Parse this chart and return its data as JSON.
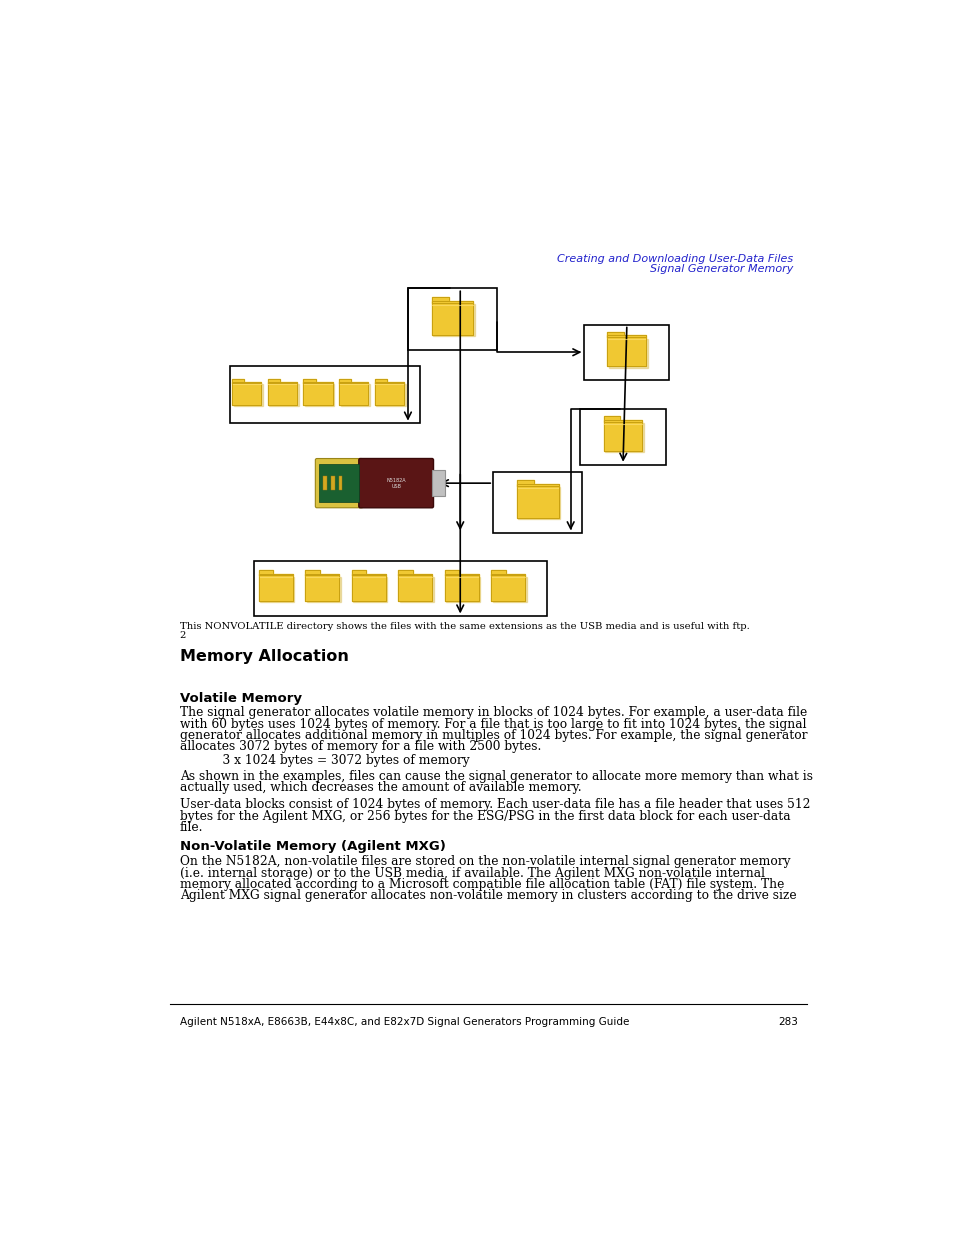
{
  "page_bg": "#ffffff",
  "header_text_line1": "Creating and Downloading User-Data Files",
  "header_text_line2": "Signal Generator Memory",
  "header_color": "#2222cc",
  "header_fontsize": 8.0,
  "section_title": "Memory Allocation",
  "section_title_fontsize": 11.5,
  "subsection1_title": "Volatile Memory",
  "subsection1_fontsize": 9.5,
  "subsection2_title": "Non-Volatile Memory (Agilent MXG)",
  "subsection2_fontsize": 9.5,
  "body_fontsize": 8.8,
  "body_color": "#000000",
  "para1_lines": [
    "The signal generator allocates volatile memory in blocks of 1024 bytes. For example, a user-data file",
    "with 60 bytes uses 1024 bytes of memory. For a file that is too large to fit into 1024 bytes, the signal",
    "generator allocates additional memory in multiples of 1024 bytes. For example, the signal generator",
    "allocates 3072 bytes of memory for a file with 2500 bytes."
  ],
  "formula": "    3 x 1024 bytes = 3072 bytes of memory",
  "para2_lines": [
    "As shown in the examples, files can cause the signal generator to allocate more memory than what is",
    "actually used, which decreases the amount of available memory."
  ],
  "para3_lines": [
    "User-data blocks consist of 1024 bytes of memory. Each user-data file has a file header that uses 512",
    "bytes for the Agilent MXG, or 256 bytes for the ESG/PSG in the first data block for each user-data",
    "file."
  ],
  "para4_lines": [
    "On the N5182A, non-volatile files are stored on the non-volatile internal signal generator memory",
    "(i.e. internal storage) or to the USB media, if available. The Agilent MXG non-volatile internal",
    "memory allocated according to a Microsoft compatible file allocation table (FAT) file system. The",
    "Agilent MXG signal generator allocates non-volatile memory in clusters according to the drive size"
  ],
  "footnote_line1": "This NONVOLATILE directory shows the files with the same extensions as the USB media and is useful with ftp.",
  "footnote_line2": "2",
  "footnote_fontsize": 7.2,
  "footer_text": "Agilent N518xA, E8663B, E44x8C, and E82x7D Signal Generators Programming Guide",
  "footer_page": "283",
  "footer_fontsize": 7.5,
  "folder_color": "#F0C832",
  "folder_edge": "#C8A010",
  "folder_shadow": "#D4A820"
}
